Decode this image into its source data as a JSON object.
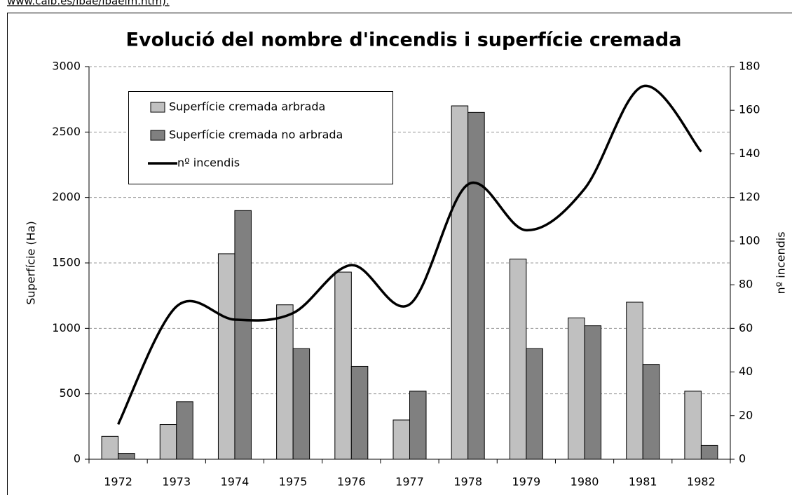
{
  "source_text": "www.caib.es/ibae/ibaelm.htm).",
  "chart_data": {
    "type": "bar",
    "title": "Evolució del nombre d'incendis i superfície cremada",
    "y_label": "Superfície (Ha)",
    "y2_label": "nº incendis",
    "categories": [
      "1972",
      "1973",
      "1974",
      "1975",
      "1976",
      "1977",
      "1978",
      "1979",
      "1980",
      "1981",
      "1982"
    ],
    "series": [
      {
        "name": "Superfície cremada arbrada",
        "type": "bar",
        "color": "#c0c0c0",
        "values": [
          175,
          265,
          1570,
          1180,
          1430,
          300,
          2700,
          1530,
          1080,
          1200,
          520
        ]
      },
      {
        "name": "Superfície cremada no arbrada",
        "type": "bar",
        "color": "#808080",
        "values": [
          45,
          440,
          1900,
          845,
          710,
          520,
          2650,
          845,
          1020,
          725,
          105
        ]
      },
      {
        "name": "nº incendis",
        "type": "line",
        "axis": "y2",
        "color": "#000000",
        "values": [
          16,
          70,
          64,
          67,
          89,
          71,
          126,
          105,
          124,
          171,
          141
        ]
      }
    ],
    "ylim": [
      0,
      3000
    ],
    "yticks": [
      0,
      500,
      1000,
      1500,
      2000,
      2500,
      3000
    ],
    "y2lim": [
      0,
      180
    ],
    "y2ticks": [
      0,
      20,
      40,
      60,
      80,
      100,
      120,
      140,
      160,
      180
    ],
    "grid": true,
    "legend": "top-left"
  }
}
